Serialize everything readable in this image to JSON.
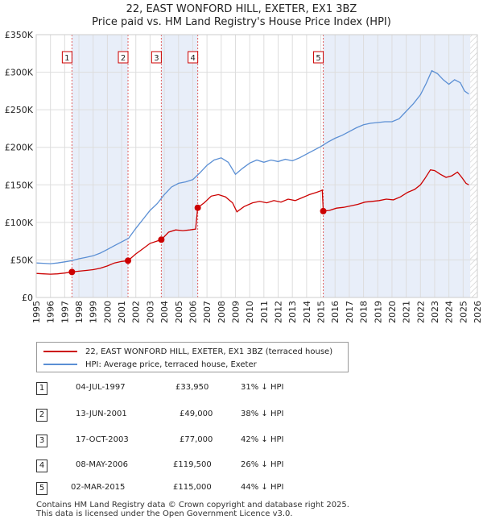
{
  "chart_data": {
    "type": "line",
    "title": "22, EAST WONFORD HILL, EXETER, EX1 3BZ",
    "subtitle": "Price paid vs. HM Land Registry's House Price Index (HPI)",
    "xlim": [
      1995,
      2026
    ],
    "ylim": [
      0,
      350000
    ],
    "x_ticks": [
      1995,
      1996,
      1997,
      1998,
      1999,
      2000,
      2001,
      2002,
      2003,
      2004,
      2005,
      2006,
      2007,
      2008,
      2009,
      2010,
      2011,
      2012,
      2013,
      2014,
      2015,
      2016,
      2017,
      2018,
      2019,
      2020,
      2021,
      2022,
      2023,
      2024,
      2025,
      2026
    ],
    "y_ticks": [
      {
        "value": 0,
        "label": "£0"
      },
      {
        "value": 50000,
        "label": "£50K"
      },
      {
        "value": 100000,
        "label": "£100K"
      },
      {
        "value": 150000,
        "label": "£150K"
      },
      {
        "value": 200000,
        "label": "£200K"
      },
      {
        "value": 250000,
        "label": "£250K"
      },
      {
        "value": 300000,
        "label": "£300K"
      },
      {
        "value": 350000,
        "label": "£350K"
      }
    ],
    "grid": true,
    "series": [
      {
        "name": "22, EAST WONFORD HILL, EXETER, EX1 3BZ (terraced house)",
        "color": "#cc0000",
        "points": [
          [
            1995.0,
            32000
          ],
          [
            1995.5,
            31500
          ],
          [
            1996.0,
            31000
          ],
          [
            1996.5,
            31500
          ],
          [
            1997.0,
            32500
          ],
          [
            1997.5,
            33950
          ],
          [
            1998.0,
            35000
          ],
          [
            1998.5,
            36000
          ],
          [
            1999.0,
            37000
          ],
          [
            1999.5,
            39000
          ],
          [
            2000.0,
            42000
          ],
          [
            2000.5,
            46000
          ],
          [
            2001.0,
            48000
          ],
          [
            2001.45,
            49000
          ],
          [
            2002.0,
            58000
          ],
          [
            2002.5,
            65000
          ],
          [
            2003.0,
            72000
          ],
          [
            2003.79,
            77000
          ],
          [
            2004.3,
            87000
          ],
          [
            2004.8,
            90000
          ],
          [
            2005.3,
            89000
          ],
          [
            2005.8,
            90000
          ],
          [
            2006.2,
            91000
          ],
          [
            2006.35,
            119500
          ],
          [
            2006.8,
            126000
          ],
          [
            2007.3,
            135000
          ],
          [
            2007.8,
            137000
          ],
          [
            2008.3,
            134000
          ],
          [
            2008.8,
            126000
          ],
          [
            2009.1,
            114000
          ],
          [
            2009.6,
            121000
          ],
          [
            2010.2,
            126000
          ],
          [
            2010.7,
            128000
          ],
          [
            2011.2,
            126000
          ],
          [
            2011.7,
            129000
          ],
          [
            2012.2,
            127000
          ],
          [
            2012.7,
            131000
          ],
          [
            2013.2,
            129000
          ],
          [
            2013.7,
            133000
          ],
          [
            2014.2,
            137000
          ],
          [
            2014.7,
            140000
          ],
          [
            2015.0,
            142000
          ],
          [
            2015.1,
            143000
          ],
          [
            2015.17,
            115000
          ],
          [
            2015.6,
            116000
          ],
          [
            2016.1,
            119000
          ],
          [
            2016.6,
            120000
          ],
          [
            2017.1,
            122000
          ],
          [
            2017.6,
            124000
          ],
          [
            2018.1,
            127000
          ],
          [
            2018.6,
            128000
          ],
          [
            2019.1,
            129000
          ],
          [
            2019.6,
            131000
          ],
          [
            2020.1,
            130000
          ],
          [
            2020.6,
            134000
          ],
          [
            2021.1,
            140000
          ],
          [
            2021.6,
            144000
          ],
          [
            2022.0,
            150000
          ],
          [
            2022.3,
            158000
          ],
          [
            2022.7,
            170000
          ],
          [
            2023.0,
            169000
          ],
          [
            2023.4,
            164000
          ],
          [
            2023.8,
            160000
          ],
          [
            2024.2,
            162000
          ],
          [
            2024.6,
            167000
          ],
          [
            2024.9,
            160000
          ],
          [
            2025.2,
            152000
          ],
          [
            2025.4,
            150000
          ]
        ]
      },
      {
        "name": "HPI: Average price, terraced house, Exeter",
        "color": "#5b8fd4",
        "points": [
          [
            1995.0,
            46000
          ],
          [
            1995.5,
            45500
          ],
          [
            1996.0,
            45000
          ],
          [
            1996.5,
            46000
          ],
          [
            1997.0,
            47500
          ],
          [
            1997.5,
            49000
          ],
          [
            1998.0,
            51500
          ],
          [
            1998.5,
            53500
          ],
          [
            1999.0,
            55500
          ],
          [
            1999.5,
            59000
          ],
          [
            2000.0,
            64000
          ],
          [
            2000.5,
            69000
          ],
          [
            2001.0,
            74000
          ],
          [
            2001.5,
            79000
          ],
          [
            2002.0,
            92000
          ],
          [
            2002.5,
            104000
          ],
          [
            2003.0,
            116000
          ],
          [
            2003.5,
            125000
          ],
          [
            2004.0,
            137000
          ],
          [
            2004.5,
            147000
          ],
          [
            2005.0,
            152000
          ],
          [
            2005.5,
            154000
          ],
          [
            2006.0,
            157000
          ],
          [
            2006.5,
            166000
          ],
          [
            2007.0,
            176000
          ],
          [
            2007.5,
            183000
          ],
          [
            2008.0,
            186000
          ],
          [
            2008.5,
            180000
          ],
          [
            2009.0,
            164000
          ],
          [
            2009.5,
            172000
          ],
          [
            2010.0,
            179000
          ],
          [
            2010.5,
            183000
          ],
          [
            2011.0,
            180000
          ],
          [
            2011.5,
            183000
          ],
          [
            2012.0,
            181000
          ],
          [
            2012.5,
            184000
          ],
          [
            2013.0,
            182000
          ],
          [
            2013.5,
            186000
          ],
          [
            2014.0,
            191000
          ],
          [
            2014.5,
            196000
          ],
          [
            2015.0,
            201000
          ],
          [
            2015.5,
            207000
          ],
          [
            2016.0,
            212000
          ],
          [
            2016.5,
            216000
          ],
          [
            2017.0,
            221000
          ],
          [
            2017.5,
            226000
          ],
          [
            2018.0,
            230000
          ],
          [
            2018.5,
            232000
          ],
          [
            2019.0,
            233000
          ],
          [
            2019.5,
            234000
          ],
          [
            2020.0,
            234000
          ],
          [
            2020.5,
            238000
          ],
          [
            2021.0,
            248000
          ],
          [
            2021.5,
            258000
          ],
          [
            2022.0,
            270000
          ],
          [
            2022.4,
            285000
          ],
          [
            2022.8,
            302000
          ],
          [
            2023.2,
            298000
          ],
          [
            2023.6,
            290000
          ],
          [
            2024.0,
            284000
          ],
          [
            2024.4,
            290000
          ],
          [
            2024.8,
            286000
          ],
          [
            2025.1,
            275000
          ],
          [
            2025.4,
            271000
          ]
        ]
      }
    ],
    "sales": [
      {
        "num": "1",
        "year": 1997.51,
        "price": 33950
      },
      {
        "num": "2",
        "year": 2001.45,
        "price": 49000
      },
      {
        "num": "3",
        "year": 2003.79,
        "price": 77000
      },
      {
        "num": "4",
        "year": 2006.35,
        "price": 119500
      },
      {
        "num": "5",
        "year": 2015.17,
        "price": 115000
      }
    ],
    "forecast_start": 2025.5
  },
  "colors": {
    "sold_band": "#e8eef9",
    "forecast_hatch": "#c8c8c8",
    "marker_line": "#e06060"
  },
  "legend": {
    "property_label": "22, EAST WONFORD HILL, EXETER, EX1 3BZ (terraced house)",
    "hpi_label": "HPI: Average price, terraced house, Exeter"
  },
  "sales_table": [
    {
      "num": "1",
      "date": "04-JUL-1997",
      "price": "£33,950",
      "hpi": "31% ↓ HPI"
    },
    {
      "num": "2",
      "date": "13-JUN-2001",
      "price": "£49,000",
      "hpi": "38% ↓ HPI"
    },
    {
      "num": "3",
      "date": "17-OCT-2003",
      "price": "£77,000",
      "hpi": "42% ↓ HPI"
    },
    {
      "num": "4",
      "date": "08-MAY-2006",
      "price": "£119,500",
      "hpi": "26% ↓ HPI"
    },
    {
      "num": "5",
      "date": "02-MAR-2015",
      "price": "£115,000",
      "hpi": "44% ↓ HPI"
    }
  ],
  "footer": {
    "line1": "Contains HM Land Registry data © Crown copyright and database right 2025.",
    "line2": "This data is licensed under the Open Government Licence v3.0."
  }
}
